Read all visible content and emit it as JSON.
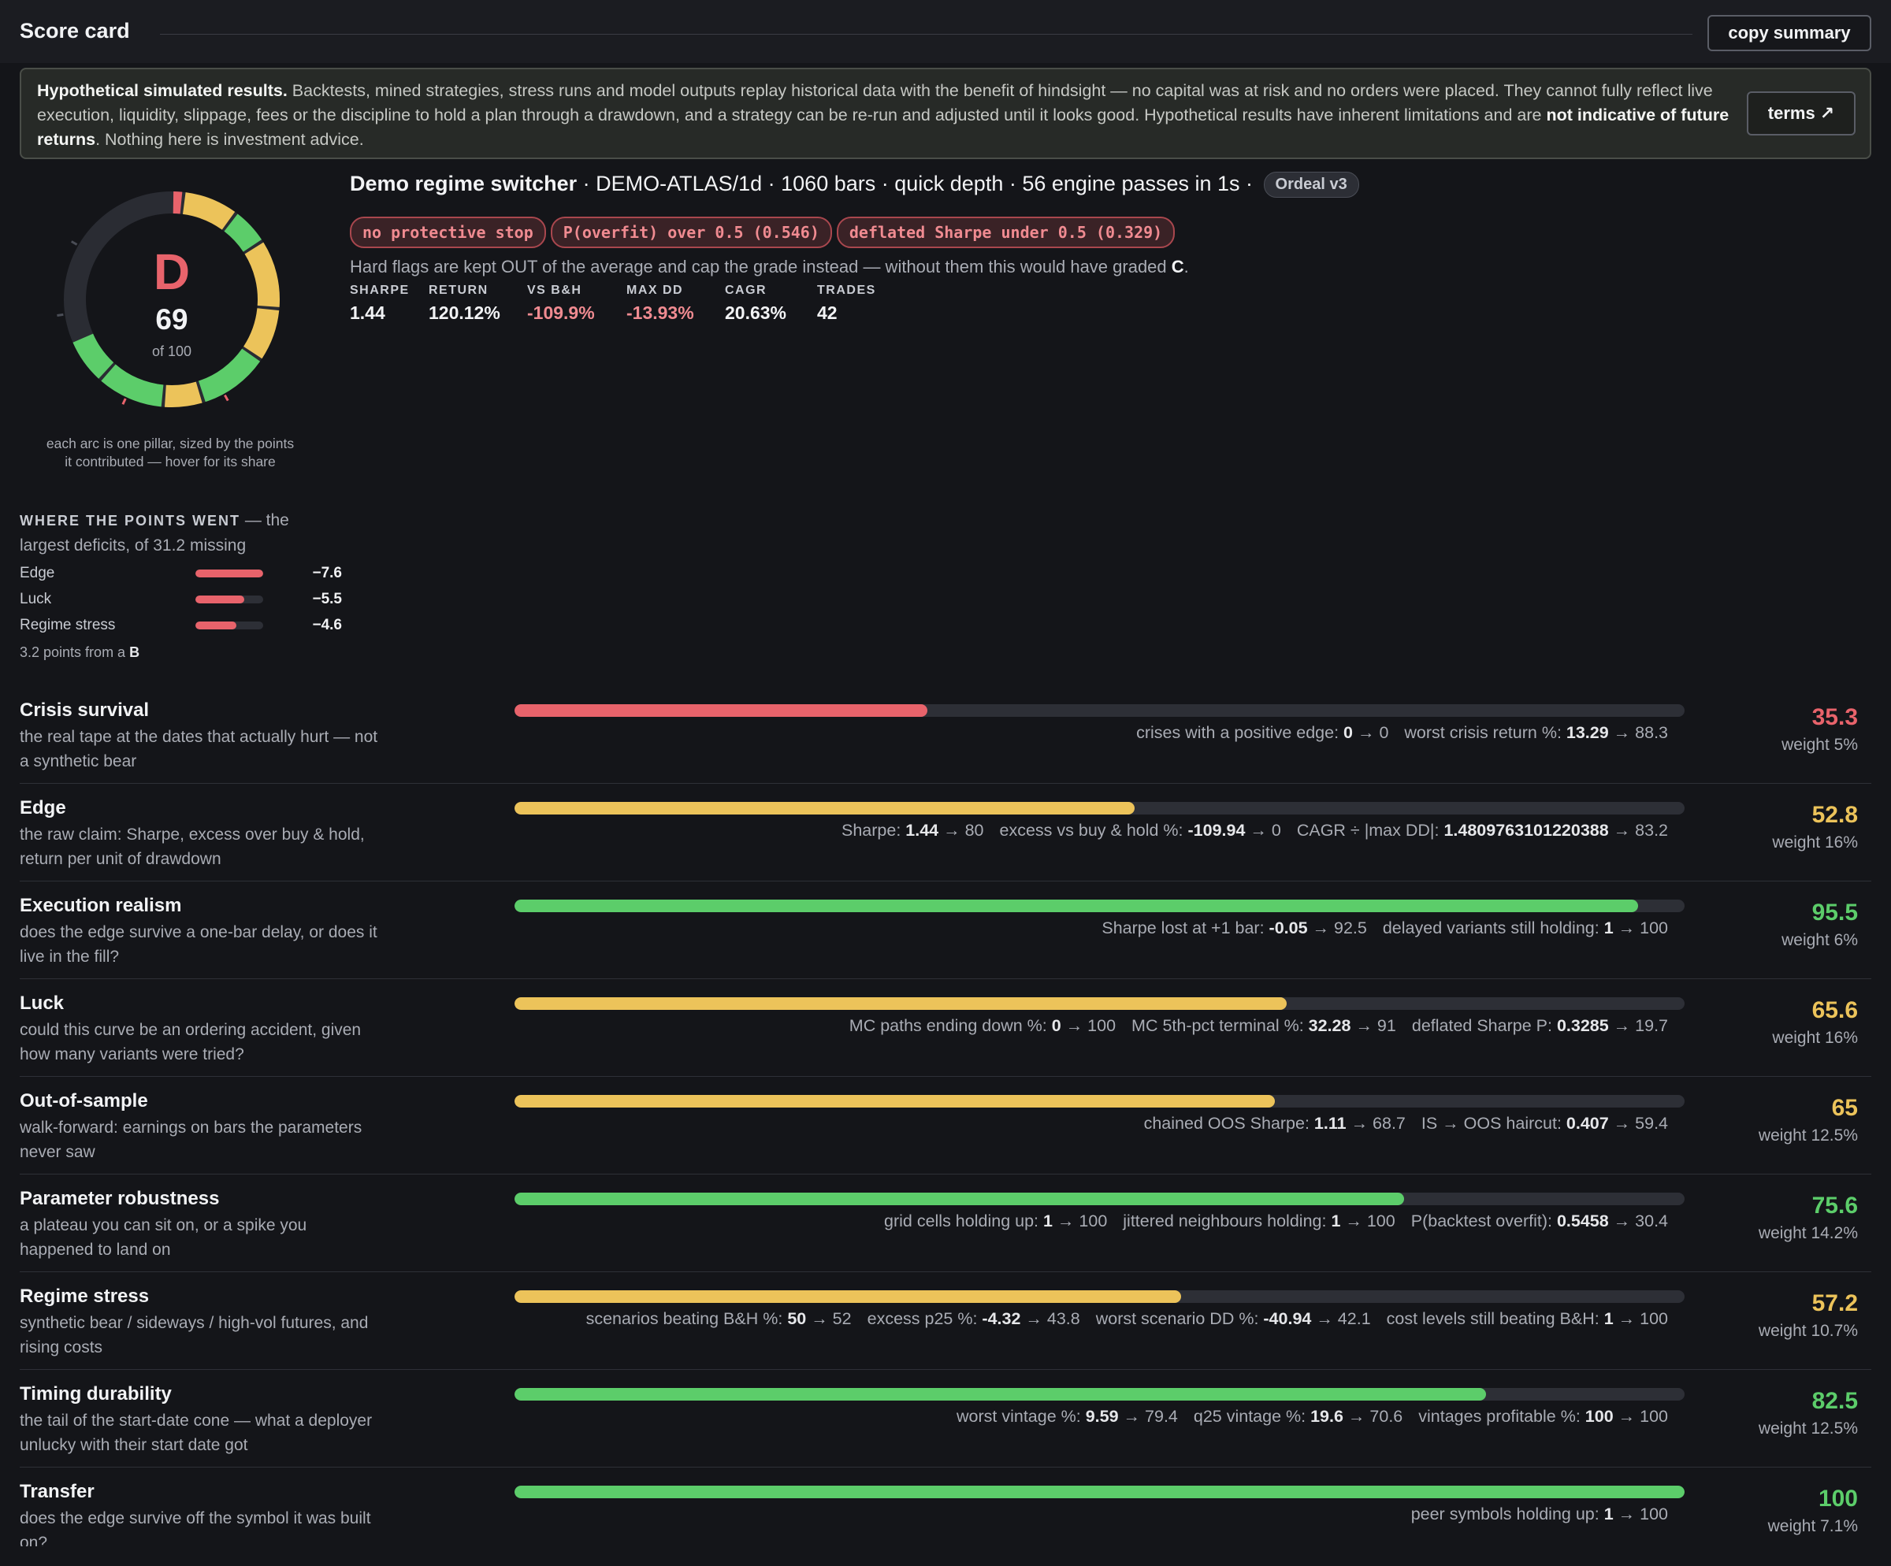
{
  "header": {
    "title": "Score card",
    "copy_label": "copy summary"
  },
  "disclaimer": {
    "bold1": "Hypothetical simulated results.",
    "text1": " Backtests, mined strategies, stress runs and model outputs replay historical data with the benefit of hindsight — no capital was at risk and no orders were placed. They cannot fully reflect live execution, liquidity, slippage, fees or the discipline to hold a plan through a drawdown, and a strategy can be re-run and adjusted until it looks good. Hypothetical results have inherent limitations and are ",
    "bold2": "not indicative of future returns",
    "text2": ". Nothing here is investment advice.",
    "terms_label": "terms ↗"
  },
  "grade": {
    "letter": "D",
    "score": "69",
    "of": "of 100"
  },
  "donut_caption": "each arc is one pillar, sized by the points it contributed — hover for its share",
  "where": {
    "label": "WHERE THE POINTS WENT",
    "text": " — the largest deficits, of 31.2 missing",
    "items": [
      {
        "name": "Edge",
        "value": "−7.6",
        "fraction": 1.0
      },
      {
        "name": "Luck",
        "value": "−5.5",
        "fraction": 0.72
      },
      {
        "name": "Regime stress",
        "value": "−4.6",
        "fraction": 0.61
      }
    ],
    "from_b_text": "3.2 points from a ",
    "from_b_grade": "B"
  },
  "summary": {
    "strategy": "Demo regime switcher",
    "rest": " · DEMO-ATLAS/1d · 1060 bars · quick depth · 56 engine passes in 1s · ",
    "version": "Ordeal v3",
    "flags": [
      "no protective stop",
      "P(overfit) over 0.5 (0.546)",
      "deflated Sharpe under 0.5 (0.329)"
    ],
    "hard_note": "Hard flags are kept OUT of the average and cap the grade instead — without them this would have graded ",
    "hard_grade": "C",
    "hard_end": ".",
    "metrics": [
      {
        "k": "SHARPE",
        "v": "1.44",
        "neg": false
      },
      {
        "k": "RETURN",
        "v": "120.12%",
        "neg": false
      },
      {
        "k": "VS B&H",
        "v": "-109.9%",
        "neg": true
      },
      {
        "k": "MAX DD",
        "v": "-13.93%",
        "neg": true
      },
      {
        "k": "CAGR",
        "v": "20.63%",
        "neg": false
      },
      {
        "k": "TRADES",
        "v": "42",
        "neg": false
      }
    ]
  },
  "pillars": [
    {
      "name": "Crisis survival",
      "desc": "the real tape at the dates that actually hurt — not a synthetic bear",
      "score": "35.3",
      "weight": "weight 5%",
      "fraction": 0.353,
      "color": "red",
      "details": [
        {
          "k": "crises with a positive edge: ",
          "v": "0",
          "r": " → 0"
        },
        {
          "k": "worst crisis return %: ",
          "v": "13.29",
          "r": " → 88.3"
        }
      ]
    },
    {
      "name": "Edge",
      "desc": "the raw claim: Sharpe, excess over buy & hold, return per unit of drawdown",
      "score": "52.8",
      "weight": "weight 16%",
      "fraction": 0.53,
      "color": "yellow",
      "details": [
        {
          "k": "Sharpe: ",
          "v": "1.44",
          "r": " → 80"
        },
        {
          "k": "excess vs buy & hold %: ",
          "v": "-109.94",
          "r": " → 0"
        },
        {
          "k": "CAGR ÷ |max DD|: ",
          "v": "1.4809763101220388",
          "r": " → 83.2"
        }
      ]
    },
    {
      "name": "Execution realism",
      "desc": "does the edge survive a one-bar delay, or does it live in the fill?",
      "score": "95.5",
      "weight": "weight 6%",
      "fraction": 0.96,
      "color": "green",
      "details": [
        {
          "k": "Sharpe lost at +1 bar: ",
          "v": "-0.05",
          "r": " → 92.5"
        },
        {
          "k": "delayed variants still holding: ",
          "v": "1",
          "r": " → 100"
        }
      ]
    },
    {
      "name": "Luck",
      "desc": "could this curve be an ordering accident, given how many variants were tried?",
      "score": "65.6",
      "weight": "weight 16%",
      "fraction": 0.66,
      "color": "yellow",
      "details": [
        {
          "k": "MC paths ending down %: ",
          "v": "0",
          "r": " → 100"
        },
        {
          "k": "MC 5th-pct terminal %: ",
          "v": "32.28",
          "r": " → 91"
        },
        {
          "k": "deflated Sharpe P: ",
          "v": "0.3285",
          "r": " → 19.7"
        }
      ]
    },
    {
      "name": "Out-of-sample",
      "desc": "walk-forward: earnings on bars the parameters never saw",
      "score": "65",
      "weight": "weight 12.5%",
      "fraction": 0.65,
      "color": "yellow",
      "details": [
        {
          "k": "chained OOS Sharpe: ",
          "v": "1.11",
          "r": " → 68.7"
        },
        {
          "k": "IS → OOS haircut: ",
          "v": "0.407",
          "r": " → 59.4"
        }
      ]
    },
    {
      "name": "Parameter robustness",
      "desc": "a plateau you can sit on, or a spike you happened to land on",
      "score": "75.6",
      "weight": "weight 14.2%",
      "fraction": 0.76,
      "color": "green",
      "details": [
        {
          "k": "grid cells holding up: ",
          "v": "1",
          "r": " → 100"
        },
        {
          "k": "jittered neighbours holding: ",
          "v": "1",
          "r": " → 100"
        },
        {
          "k": "P(backtest overfit): ",
          "v": "0.5458",
          "r": " → 30.4"
        }
      ]
    },
    {
      "name": "Regime stress",
      "desc": "synthetic bear / sideways / high-vol futures, and rising costs",
      "score": "57.2",
      "weight": "weight 10.7%",
      "fraction": 0.57,
      "color": "yellow",
      "details": [
        {
          "k": "scenarios beating B&H %: ",
          "v": "50",
          "r": " → 52"
        },
        {
          "k": "excess p25 %: ",
          "v": "-4.32",
          "r": " → 43.8"
        },
        {
          "k": "worst scenario DD %: ",
          "v": "-40.94",
          "r": " → 42.1"
        },
        {
          "k": "cost levels still beating B&H: ",
          "v": "1",
          "r": " → 100"
        }
      ]
    },
    {
      "name": "Timing durability",
      "desc": "the tail of the start-date cone — what a deployer unlucky with their start date got",
      "score": "82.5",
      "weight": "weight 12.5%",
      "fraction": 0.83,
      "color": "green",
      "details": [
        {
          "k": "worst vintage %: ",
          "v": "9.59",
          "r": " → 79.4"
        },
        {
          "k": "q25 vintage %: ",
          "v": "19.6",
          "r": " → 70.6"
        },
        {
          "k": "vintages profitable %: ",
          "v": "100",
          "r": " → 100"
        }
      ]
    },
    {
      "name": "Transfer",
      "desc": "does the edge survive off the symbol it was built on?",
      "score": "100",
      "weight": "weight 7.1%",
      "fraction": 1.0,
      "color": "green",
      "details": [
        {
          "k": "peer symbols holding up: ",
          "v": "1",
          "r": " → 100"
        }
      ]
    }
  ],
  "donut_segments": [
    {
      "color": "#e8636b",
      "value": 1.8
    },
    {
      "color": "#ecc35a",
      "value": 8.4
    },
    {
      "color": "#5ccd6a",
      "value": 5.7
    },
    {
      "color": "#ecc35a",
      "value": 10.5
    },
    {
      "color": "#ecc35a",
      "value": 8.1
    },
    {
      "color": "#5ccd6a",
      "value": 10.7
    },
    {
      "color": "#ecc35a",
      "value": 6.1
    },
    {
      "color": "#5ccd6a",
      "value": 10.3
    },
    {
      "color": "#5ccd6a",
      "value": 7.1
    }
  ]
}
